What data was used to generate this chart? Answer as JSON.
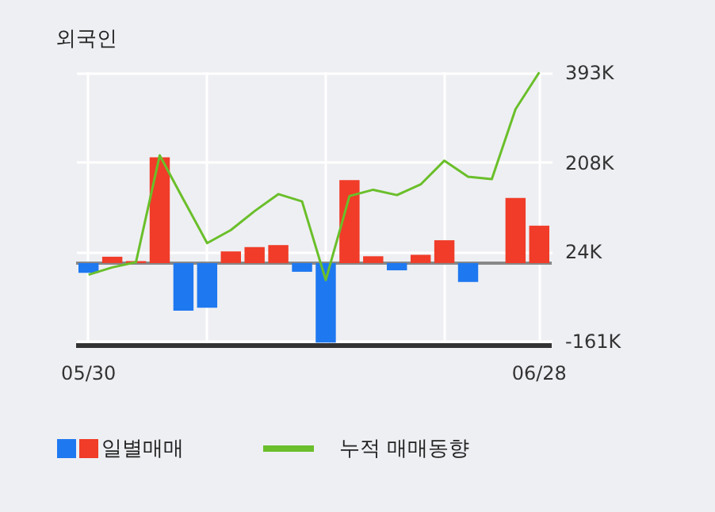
{
  "chart_data": {
    "type": "bar",
    "title": "외국인",
    "categories": [
      "05/30",
      null,
      null,
      null,
      null,
      null,
      null,
      null,
      null,
      null,
      null,
      null,
      null,
      null,
      null,
      null,
      null,
      null,
      null,
      "06/28"
    ],
    "series": [
      {
        "name": "일별매매",
        "colors": [
          "#1e78f0",
          "#f03c28",
          "#f03c28",
          "#f03c28",
          "#1e78f0",
          "#1e78f0",
          "#f03c28",
          "#f03c28",
          "#f03c28",
          "#1e78f0",
          "#1e78f0",
          "#f03c28",
          "#f03c28",
          "#1e78f0",
          "#f03c28",
          "#f03c28",
          "#1e78f0",
          "#f03c28",
          "#f03c28",
          "#f03c28"
        ],
        "values": [
          -20,
          13,
          4,
          218,
          -98,
          -92,
          24,
          33,
          37,
          -18,
          -164,
          171,
          14,
          -15,
          17,
          47,
          -39,
          0,
          134,
          77
        ]
      },
      {
        "name": "누적 매매동향",
        "type": "line",
        "color": "#6abf2a",
        "values": [
          -24,
          -9,
          2,
          222,
          131,
          41,
          68,
          107,
          142,
          127,
          -35,
          138,
          151,
          140,
          162,
          211,
          178,
          173,
          317,
          393
        ]
      }
    ],
    "ylim": [
      -170,
      395
    ],
    "yticks": [
      {
        "value": -161,
        "label": "-161K"
      },
      {
        "value": 24,
        "label": "24K"
      },
      {
        "value": 208,
        "label": "208K"
      },
      {
        "value": 393,
        "label": "393K"
      }
    ],
    "ref_lines": [
      {
        "axis": "y",
        "value": 0,
        "color": "#888888"
      }
    ],
    "grid": true,
    "legend": "bottom"
  }
}
